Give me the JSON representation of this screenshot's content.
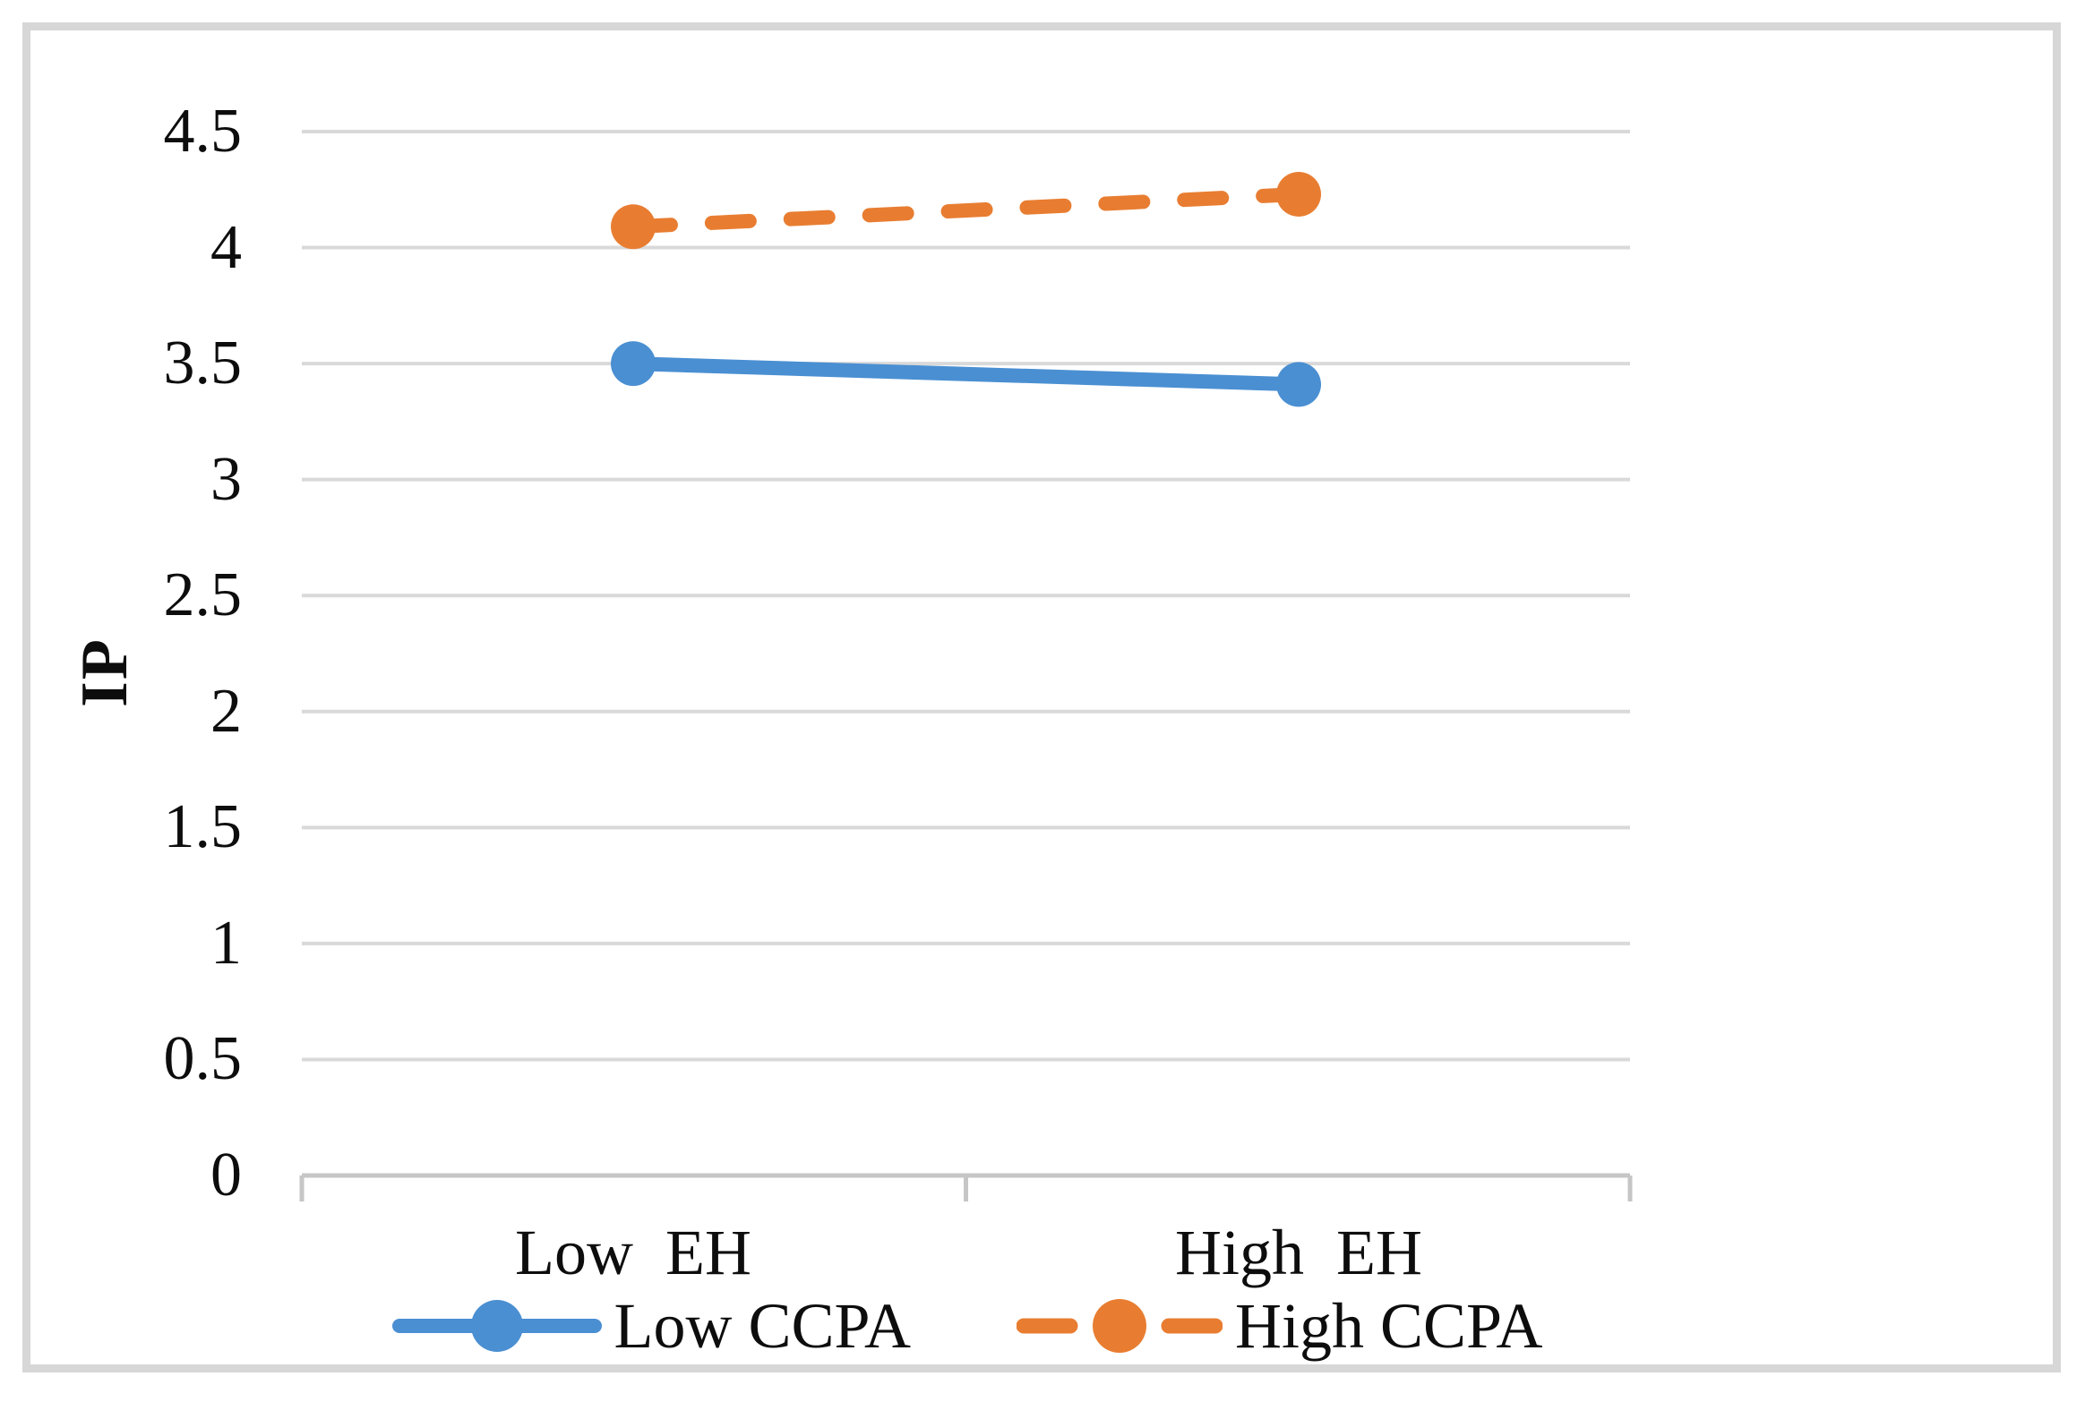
{
  "chart_data": {
    "type": "line",
    "title": "",
    "xlabel": "",
    "ylabel": "IP",
    "categories": [
      "Low  EH",
      "High  EH"
    ],
    "series": [
      {
        "name": "Low CCPA",
        "values": [
          3.5,
          3.41
        ],
        "color": "#4a8fd2",
        "style": "solid",
        "marker": "circle"
      },
      {
        "name": "High CCPA",
        "values": [
          4.09,
          4.23
        ],
        "color": "#e87d31",
        "style": "dashed",
        "marker": "circle"
      }
    ],
    "ylim": [
      0,
      4.5
    ],
    "ytick_step": 0.5,
    "yticks": [
      0,
      0.5,
      1,
      1.5,
      2,
      2.5,
      3,
      3.5,
      4,
      4.5
    ],
    "grid": "horizontal",
    "legend_position": "bottom"
  },
  "colors": {
    "gridline": "#d9d9d9",
    "axis": "#c6c6c6",
    "frame": "#d7d7d7",
    "text": "#0d0d0d"
  }
}
